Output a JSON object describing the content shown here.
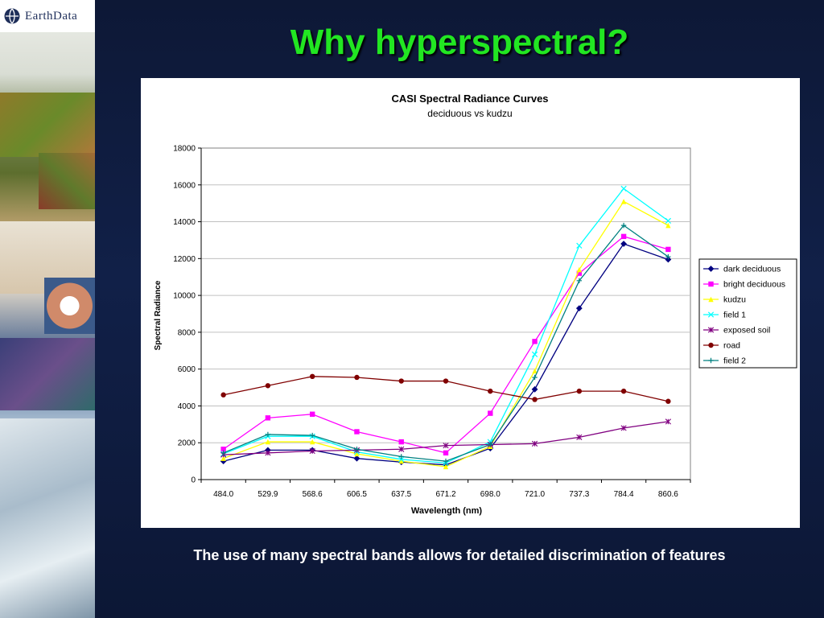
{
  "brand": {
    "name": "EarthData",
    "logo_icon": "globe-icon"
  },
  "slide": {
    "title": "Why hyperspectral?",
    "caption": "The use of many spectral bands allows for detailed discrimination of features"
  },
  "chart_data": {
    "type": "line",
    "title": "CASI Spectral Radiance Curves",
    "subtitle": "deciduous vs kudzu",
    "xlabel": "Wavelength (nm)",
    "ylabel": "Spectral Radiance",
    "categories": [
      "484.0",
      "529.9",
      "568.6",
      "606.5",
      "637.5",
      "671.2",
      "698.0",
      "721.0",
      "737.3",
      "784.4",
      "860.6"
    ],
    "ylim": [
      0,
      18000
    ],
    "yticks": [
      0,
      2000,
      4000,
      6000,
      8000,
      10000,
      12000,
      14000,
      16000,
      18000
    ],
    "grid": "horizontal",
    "legend_position": "right",
    "series": [
      {
        "name": "dark deciduous",
        "color": "#000080",
        "marker": "diamond",
        "values": [
          1000,
          1600,
          1600,
          1150,
          950,
          800,
          1700,
          4900,
          9300,
          12800,
          11950
        ]
      },
      {
        "name": "bright deciduous",
        "color": "#ff00ff",
        "marker": "square",
        "values": [
          1650,
          3350,
          3550,
          2600,
          2050,
          1450,
          3600,
          7500,
          11200,
          13200,
          12500
        ]
      },
      {
        "name": "kudzu",
        "color": "#ffff00",
        "marker": "triangle",
        "values": [
          1150,
          2050,
          2050,
          1400,
          1000,
          700,
          1800,
          5900,
          11400,
          15100,
          13800
        ]
      },
      {
        "name": "field 1",
        "color": "#00ffff",
        "marker": "x",
        "values": [
          1400,
          2350,
          2350,
          1500,
          1100,
          900,
          2050,
          6800,
          12700,
          15800,
          14050
        ]
      },
      {
        "name": "exposed soil",
        "color": "#800080",
        "marker": "asterisk",
        "values": [
          1350,
          1450,
          1550,
          1600,
          1650,
          1850,
          1900,
          1950,
          2300,
          2800,
          3150
        ]
      },
      {
        "name": "road",
        "color": "#800000",
        "marker": "circle",
        "values": [
          4600,
          5100,
          5600,
          5550,
          5350,
          5350,
          4800,
          4350,
          4800,
          4800,
          4250
        ]
      },
      {
        "name": "field 2",
        "color": "#008080",
        "marker": "plus",
        "values": [
          1450,
          2450,
          2400,
          1650,
          1250,
          1000,
          1900,
          5550,
          10800,
          13800,
          12100
        ]
      }
    ]
  }
}
